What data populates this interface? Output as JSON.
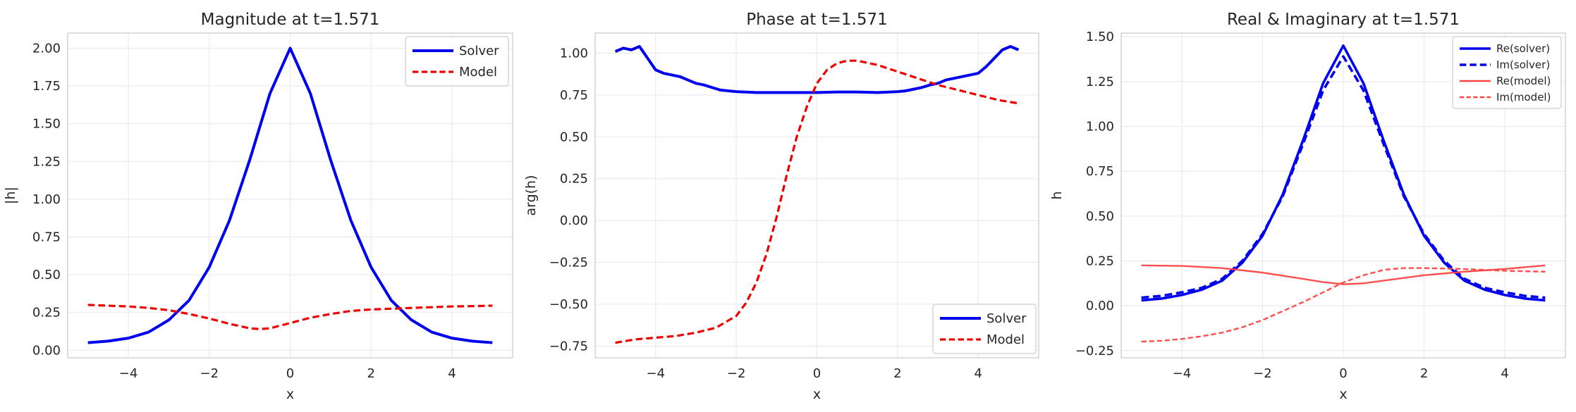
{
  "chart_data": [
    {
      "type": "line",
      "title": "Magnitude at t=1.571",
      "xlabel": "x",
      "ylabel": "|h|",
      "xlim": [
        -5.5,
        5.5
      ],
      "ylim": [
        -0.05,
        2.1
      ],
      "xticks": [
        -4,
        -2,
        0,
        2,
        4
      ],
      "xtick_labels": [
        "−4",
        "−2",
        "0",
        "2",
        "4"
      ],
      "yticks": [
        0,
        0.25,
        0.5,
        0.75,
        1.0,
        1.25,
        1.5,
        1.75,
        2.0
      ],
      "ytick_labels": [
        "0.00",
        "0.25",
        "0.50",
        "0.75",
        "1.00",
        "1.25",
        "1.50",
        "1.75",
        "2.00"
      ],
      "grid": true,
      "legend": "upper-right",
      "series": [
        {
          "name": "Solver",
          "color": "#0000ee",
          "style": "solid",
          "width": 4,
          "x": [
            -5,
            -4.5,
            -4,
            -3.5,
            -3,
            -2.5,
            -2,
            -1.5,
            -1,
            -0.5,
            0,
            0.5,
            1,
            1.5,
            2,
            2.5,
            3,
            3.5,
            4,
            4.5,
            5
          ],
          "y": [
            0.05,
            0.06,
            0.08,
            0.12,
            0.2,
            0.33,
            0.55,
            0.86,
            1.26,
            1.7,
            2.0,
            1.7,
            1.26,
            0.86,
            0.55,
            0.33,
            0.2,
            0.12,
            0.08,
            0.06,
            0.05
          ]
        },
        {
          "name": "Model",
          "color": "#ee0000",
          "style": "dashed",
          "width": 3.2,
          "x": [
            -5,
            -4.5,
            -4,
            -3.5,
            -3,
            -2.5,
            -2,
            -1.5,
            -1,
            -0.75,
            -0.5,
            0,
            0.5,
            1,
            1.5,
            2,
            2.5,
            3,
            3.5,
            4,
            4.5,
            5
          ],
          "y": [
            0.3,
            0.295,
            0.29,
            0.28,
            0.265,
            0.24,
            0.21,
            0.175,
            0.145,
            0.14,
            0.145,
            0.18,
            0.215,
            0.24,
            0.26,
            0.27,
            0.275,
            0.28,
            0.285,
            0.29,
            0.292,
            0.295
          ]
        }
      ]
    },
    {
      "type": "line",
      "title": "Phase at t=1.571",
      "xlabel": "x",
      "ylabel": "arg(h)",
      "xlim": [
        -5.5,
        5.5
      ],
      "ylim": [
        -0.82,
        1.12
      ],
      "xticks": [
        -4,
        -2,
        0,
        2,
        4
      ],
      "xtick_labels": [
        "−4",
        "−2",
        "0",
        "2",
        "4"
      ],
      "yticks": [
        -0.75,
        -0.5,
        -0.25,
        0,
        0.25,
        0.5,
        0.75,
        1.0
      ],
      "ytick_labels": [
        "−0.75",
        "−0.50",
        "−0.25",
        "0.00",
        "0.25",
        "0.50",
        "0.75",
        "1.00"
      ],
      "grid": true,
      "legend": "lower-right",
      "series": [
        {
          "name": "Solver",
          "color": "#0000ee",
          "style": "solid",
          "width": 4,
          "x": [
            -5,
            -4.8,
            -4.6,
            -4.4,
            -4.2,
            -4,
            -3.8,
            -3.6,
            -3.4,
            -3.2,
            -3,
            -2.8,
            -2.6,
            -2.4,
            -2.2,
            -2,
            -1.5,
            -1,
            -0.5,
            0,
            0.5,
            1,
            1.5,
            2,
            2.2,
            2.4,
            2.6,
            2.8,
            3,
            3.2,
            3.4,
            3.6,
            3.8,
            4,
            4.2,
            4.4,
            4.6,
            4.8,
            5
          ],
          "y": [
            1.01,
            1.03,
            1.02,
            1.04,
            0.97,
            0.9,
            0.88,
            0.87,
            0.86,
            0.84,
            0.82,
            0.81,
            0.795,
            0.78,
            0.775,
            0.77,
            0.765,
            0.765,
            0.765,
            0.765,
            0.768,
            0.768,
            0.765,
            0.77,
            0.775,
            0.785,
            0.795,
            0.81,
            0.82,
            0.84,
            0.85,
            0.86,
            0.87,
            0.88,
            0.92,
            0.97,
            1.02,
            1.04,
            1.02
          ]
        },
        {
          "name": "Model",
          "color": "#ee0000",
          "style": "dashed",
          "width": 3.2,
          "x": [
            -5,
            -4.5,
            -4,
            -3.5,
            -3,
            -2.5,
            -2,
            -1.75,
            -1.5,
            -1.25,
            -1,
            -0.75,
            -0.5,
            -0.25,
            0,
            0.25,
            0.5,
            0.75,
            1,
            1.5,
            2,
            2.5,
            3,
            3.5,
            4,
            4.5,
            5
          ],
          "y": [
            -0.73,
            -0.71,
            -0.7,
            -0.69,
            -0.67,
            -0.64,
            -0.57,
            -0.49,
            -0.37,
            -0.2,
            0.02,
            0.27,
            0.5,
            0.68,
            0.82,
            0.9,
            0.94,
            0.955,
            0.955,
            0.93,
            0.89,
            0.85,
            0.81,
            0.78,
            0.75,
            0.72,
            0.7
          ]
        }
      ]
    },
    {
      "type": "line",
      "title": "Real & Imaginary at t=1.571",
      "xlabel": "x",
      "ylabel": "h",
      "xlim": [
        -5.5,
        5.5
      ],
      "ylim": [
        -0.29,
        1.52
      ],
      "xticks": [
        -4,
        -2,
        0,
        2,
        4
      ],
      "xtick_labels": [
        "−4",
        "−2",
        "0",
        "2",
        "4"
      ],
      "yticks": [
        -0.25,
        0,
        0.25,
        0.5,
        0.75,
        1.0,
        1.25,
        1.5
      ],
      "ytick_labels": [
        "−0.25",
        "0.00",
        "0.25",
        "0.50",
        "0.75",
        "1.00",
        "1.25",
        "1.50"
      ],
      "grid": true,
      "legend": "upper-right",
      "series": [
        {
          "name": "Re(solver)",
          "color": "#0000ee",
          "style": "solid",
          "width": 3.6,
          "x": [
            -5,
            -4.5,
            -4,
            -3.5,
            -3,
            -2.5,
            -2,
            -1.5,
            -1,
            -0.5,
            0,
            0.5,
            1,
            1.5,
            2,
            2.5,
            3,
            3.5,
            4,
            4.5,
            5
          ],
          "y": [
            0.03,
            0.04,
            0.06,
            0.09,
            0.14,
            0.24,
            0.39,
            0.62,
            0.92,
            1.24,
            1.45,
            1.24,
            0.92,
            0.62,
            0.39,
            0.24,
            0.14,
            0.09,
            0.06,
            0.04,
            0.03
          ]
        },
        {
          "name": "Im(solver)",
          "color": "#0000ee",
          "style": "dashed",
          "width": 3.6,
          "x": [
            -5,
            -4.5,
            -4,
            -3.5,
            -3,
            -2.5,
            -2,
            -1.5,
            -1,
            -0.5,
            0,
            0.5,
            1,
            1.5,
            2,
            2.5,
            3,
            3.5,
            4,
            4.5,
            5
          ],
          "y": [
            0.045,
            0.055,
            0.075,
            0.1,
            0.15,
            0.25,
            0.4,
            0.61,
            0.9,
            1.2,
            1.39,
            1.2,
            0.9,
            0.61,
            0.4,
            0.25,
            0.15,
            0.1,
            0.075,
            0.055,
            0.045
          ]
        },
        {
          "name": "Re(model)",
          "color": "#ff4444",
          "style": "solid",
          "width": 2.4,
          "x": [
            -5,
            -4,
            -3,
            -2,
            -1,
            -0.5,
            0,
            0.5,
            1,
            2,
            3,
            4,
            5
          ],
          "y": [
            0.225,
            0.222,
            0.21,
            0.185,
            0.15,
            0.132,
            0.12,
            0.125,
            0.14,
            0.17,
            0.19,
            0.205,
            0.225
          ]
        },
        {
          "name": "Im(model)",
          "color": "#ff4444",
          "style": "dashed",
          "width": 2.4,
          "x": [
            -5,
            -4.5,
            -4,
            -3.5,
            -3,
            -2.5,
            -2,
            -1.5,
            -1,
            -0.5,
            0,
            0.5,
            1,
            1.5,
            2,
            3,
            4,
            5
          ],
          "y": [
            -0.2,
            -0.195,
            -0.185,
            -0.17,
            -0.15,
            -0.12,
            -0.08,
            -0.03,
            0.02,
            0.075,
            0.13,
            0.17,
            0.2,
            0.21,
            0.21,
            0.205,
            0.195,
            0.19
          ]
        }
      ]
    }
  ]
}
